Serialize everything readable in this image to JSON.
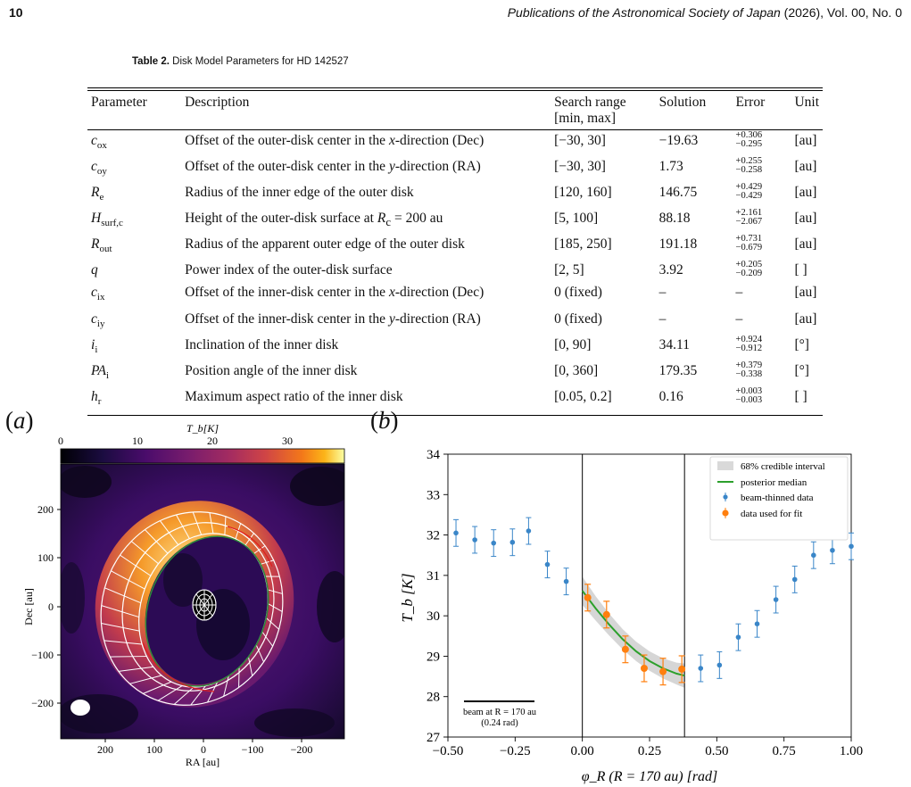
{
  "page": {
    "page_number": "10",
    "journal": "Publications of the Astronomical Society of Japan",
    "journal_tail": " (2026), Vol. 00, No. 0"
  },
  "table": {
    "caption_label": "Table 2.",
    "caption_text": " Disk Model Parameters for HD 142527",
    "headers": [
      "Parameter",
      "Description",
      "Search range",
      "Solution",
      "Error",
      "Unit"
    ],
    "header_sub": "[min, max]",
    "rows": [
      {
        "param": "c",
        "sub": "ox",
        "desc": "Offset of the outer-disk center in the x-direction (Dec)",
        "range": "[−30, 30]",
        "solution": "−19.63",
        "err_plus": "+0.306",
        "err_minus": "−0.295",
        "unit": "[au]"
      },
      {
        "param": "c",
        "sub": "oy",
        "desc": "Offset of the outer-disk center in the y-direction (RA)",
        "range": "[−30, 30]",
        "solution": "1.73",
        "err_plus": "+0.255",
        "err_minus": "−0.258",
        "unit": "[au]"
      },
      {
        "param": "R",
        "sub": "e",
        "desc": "Radius of the inner edge of the outer disk",
        "range": "[120, 160]",
        "solution": "146.75",
        "err_plus": "+0.429",
        "err_minus": "−0.429",
        "unit": "[au]"
      },
      {
        "param": "H",
        "sub": "surf,c",
        "desc": "Height of the outer-disk surface at R<sub>c</sub> = 200 au",
        "range": "[5, 100]",
        "solution": "88.18",
        "err_plus": "+2.161",
        "err_minus": "−2.067",
        "unit": "[au]"
      },
      {
        "param": "R",
        "sub": "out",
        "desc": "Radius of the apparent outer edge of the outer disk",
        "range": "[185, 250]",
        "solution": "191.18",
        "err_plus": "+0.731",
        "err_minus": "−0.679",
        "unit": "[au]"
      },
      {
        "param": "q",
        "sub": "",
        "desc": "Power index of the outer-disk surface",
        "range": "[2, 5]",
        "solution": "3.92",
        "err_plus": "+0.205",
        "err_minus": "−0.209",
        "unit": "[ ]"
      },
      {
        "param": "c",
        "sub": "ix",
        "desc": "Offset of the inner-disk center in the x-direction (Dec)",
        "range": "0 (fixed)",
        "solution": "–",
        "err_plus": "",
        "err_minus": "",
        "err_dash": "–",
        "unit": "[au]"
      },
      {
        "param": "c",
        "sub": "iy",
        "desc": "Offset of the inner-disk center in the y-direction (RA)",
        "range": "0 (fixed)",
        "solution": "–",
        "err_plus": "",
        "err_minus": "",
        "err_dash": "–",
        "unit": "[au]"
      },
      {
        "param": "i",
        "sub": "i",
        "desc": "Inclination of the inner disk",
        "range": "[0, 90]",
        "solution": "34.11",
        "err_plus": "+0.924",
        "err_minus": "−0.912",
        "unit": "[°]"
      },
      {
        "param": "PA",
        "sub": "i",
        "desc": "Position angle of the inner disk",
        "range": "[0, 360]",
        "solution": "179.35",
        "err_plus": "+0.379",
        "err_minus": "−0.338",
        "unit": "[°]"
      },
      {
        "param": "h",
        "sub": "r",
        "desc": "Maximum aspect ratio of the inner disk",
        "range": "[0.05, 0.2]",
        "solution": "0.16",
        "err_plus": "+0.003",
        "err_minus": "−0.003",
        "unit": "[ ]"
      }
    ]
  },
  "figure": {
    "label_a": "a",
    "label_b": "b",
    "colorbar_label": "T_b[K]",
    "colorbar_ticks": [
      "0",
      "10",
      "20",
      "30"
    ],
    "image_ylabel": "Dec [au]",
    "image_xlabel": "RA [au]",
    "image_yticks": [
      "200",
      "100",
      "0",
      "−100",
      "−200"
    ],
    "image_xticks": [
      "200",
      "100",
      "0",
      "−100",
      "−200"
    ]
  },
  "chart_data": {
    "type": "scatter",
    "ylabel": "T_b [K]",
    "xlabel": "φ_R (R = 170 au) [rad]",
    "xlim": [
      -0.5,
      1.0
    ],
    "ylim": [
      27,
      34
    ],
    "xticks": [
      "−0.50",
      "−0.25",
      "0.00",
      "0.25",
      "0.50",
      "0.75",
      "1.00"
    ],
    "yticks": [
      "27",
      "28",
      "29",
      "30",
      "31",
      "32",
      "33",
      "34"
    ],
    "vlines": [
      0.0,
      0.38
    ],
    "legend": [
      "68% credible interval",
      "posterior median",
      "beam-thinned data",
      "data used for fit"
    ],
    "legend_position": "top-right",
    "annotation_line1": "beam at R = 170 au",
    "annotation_line2": "(0.24 rad)",
    "beam_thinned": {
      "x": [
        -0.47,
        -0.4,
        -0.33,
        -0.26,
        -0.2,
        -0.13,
        -0.06,
        0.44,
        0.51,
        0.58,
        0.65,
        0.72,
        0.79,
        0.86,
        0.93,
        1.0
      ],
      "y": [
        32.05,
        31.88,
        31.8,
        31.82,
        32.1,
        31.27,
        30.85,
        28.7,
        28.78,
        29.47,
        29.8,
        30.4,
        30.9,
        31.5,
        31.62,
        31.72
      ],
      "err": [
        0.33,
        0.33,
        0.33,
        0.33,
        0.33,
        0.33,
        0.33,
        0.33,
        0.33,
        0.33,
        0.33,
        0.33,
        0.33,
        0.33,
        0.33,
        0.33
      ]
    },
    "fit_data": {
      "x": [
        0.02,
        0.09,
        0.16,
        0.23,
        0.3,
        0.37
      ],
      "y": [
        30.45,
        30.03,
        29.17,
        28.7,
        28.62,
        28.68
      ],
      "err": [
        0.33,
        0.33,
        0.33,
        0.33,
        0.33,
        0.33
      ]
    },
    "median_curve": {
      "x": [
        0.0,
        0.05,
        0.1,
        0.15,
        0.2,
        0.25,
        0.3,
        0.35,
        0.38
      ],
      "y": [
        30.62,
        30.18,
        29.78,
        29.42,
        29.12,
        28.88,
        28.7,
        28.57,
        28.52
      ],
      "band": [
        0.35,
        0.3,
        0.27,
        0.25,
        0.24,
        0.24,
        0.25,
        0.27,
        0.3
      ]
    },
    "colors": {
      "beam": "#3a86c8",
      "fit": "#ff7f0e",
      "median": "#2ca02c",
      "band": "#c8c8c8"
    }
  }
}
